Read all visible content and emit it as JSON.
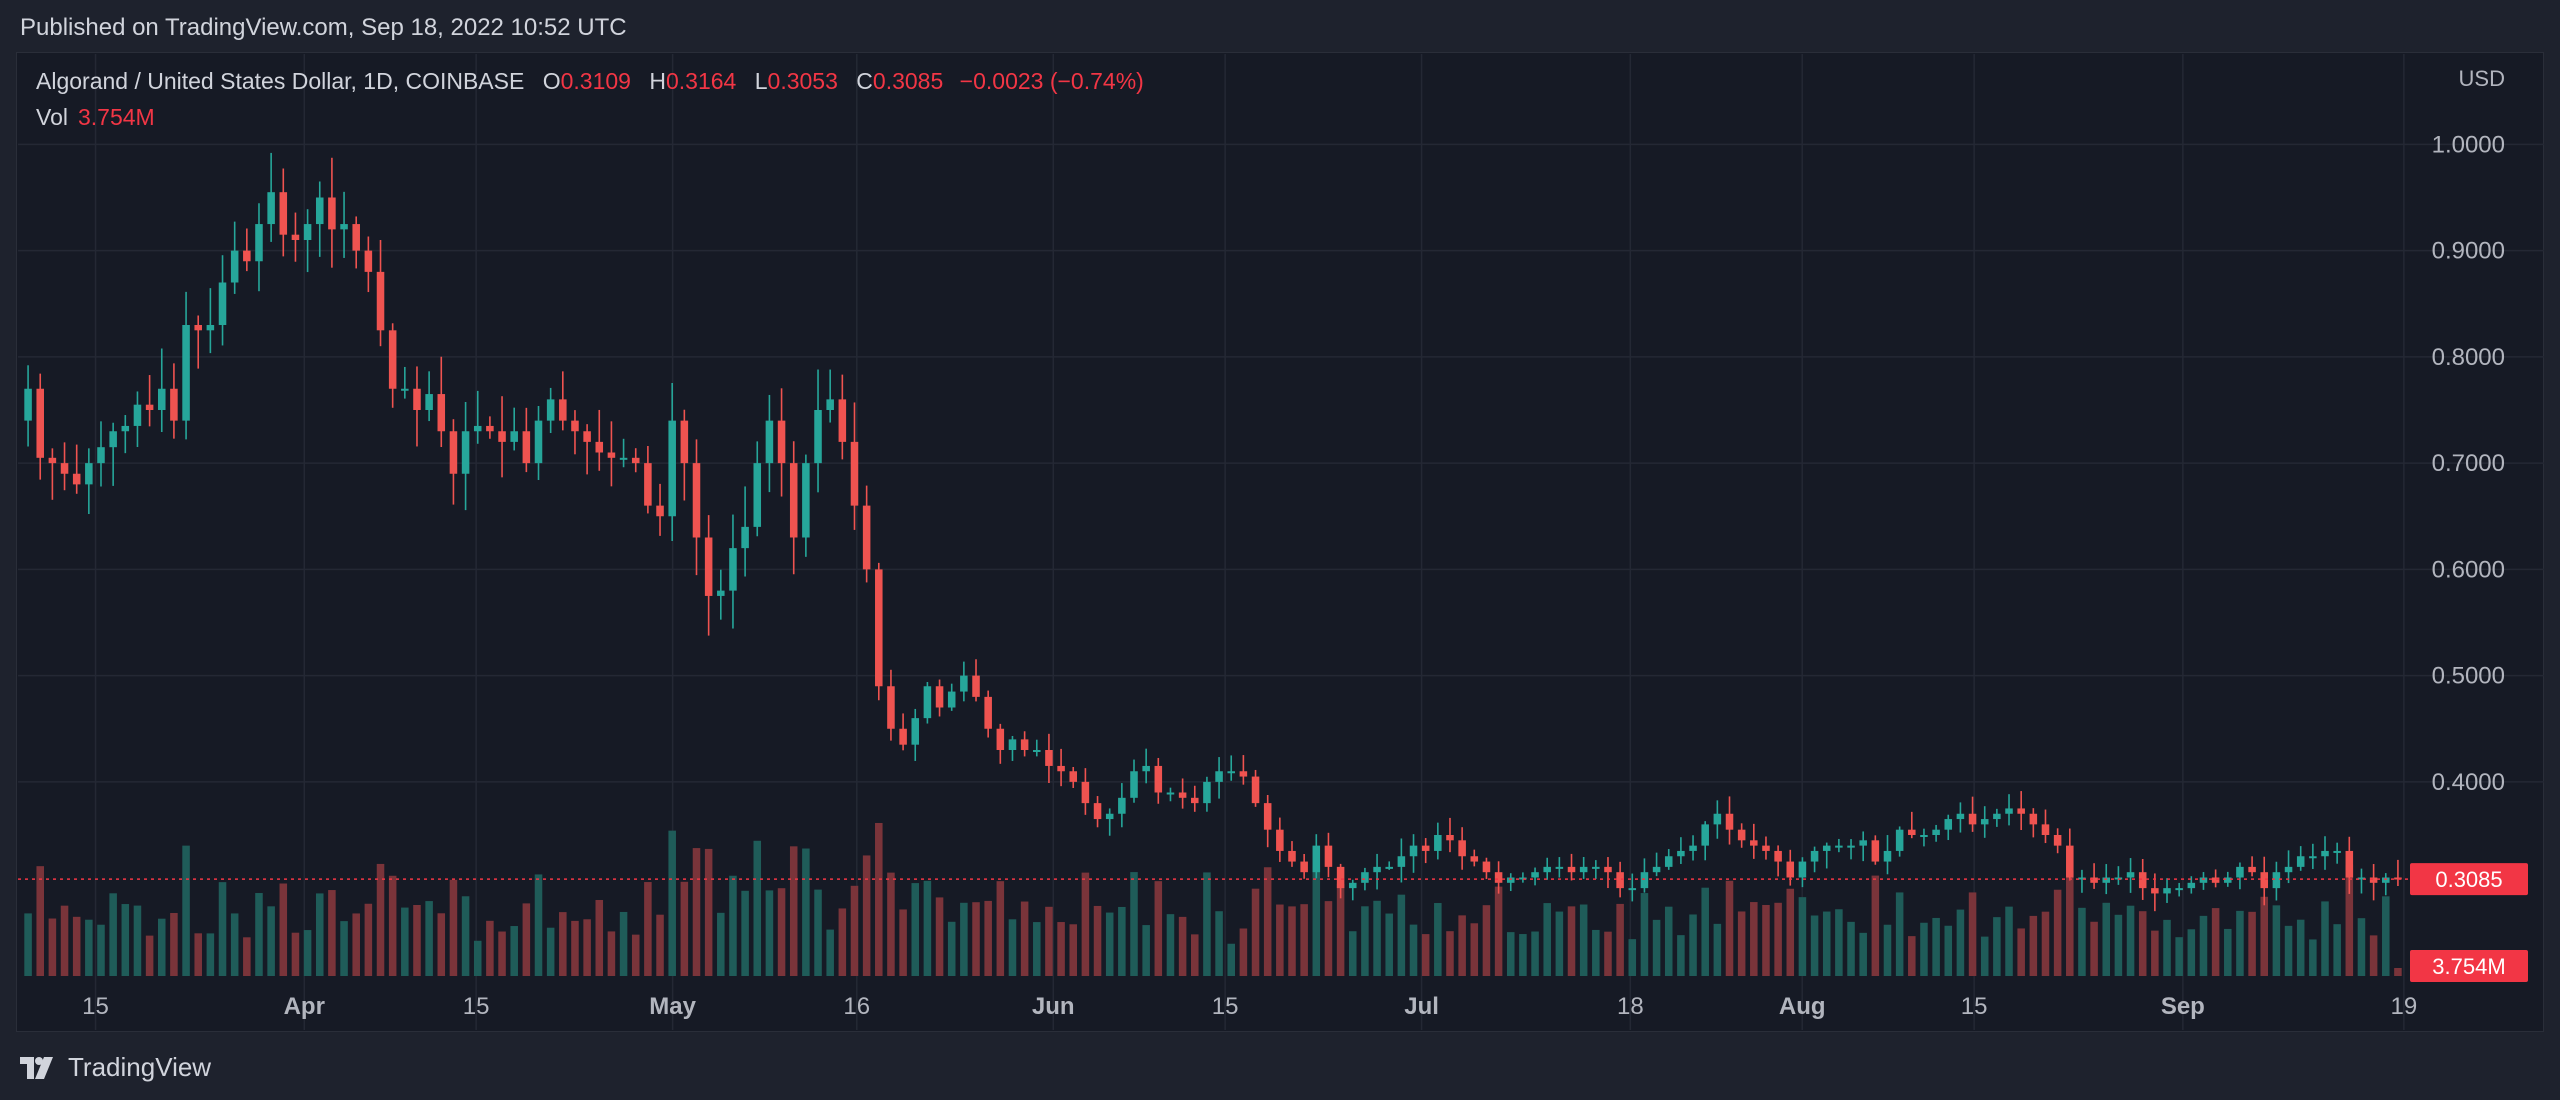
{
  "header": {
    "published": "Published on TradingView.com, Sep 18, 2022 10:52 UTC"
  },
  "legend": {
    "symbol": "Algorand / United States Dollar, 1D, COINBASE",
    "o_label": "O",
    "o_value": "0.3109",
    "h_label": "H",
    "h_value": "0.3164",
    "l_label": "L",
    "l_value": "0.3053",
    "c_label": "C",
    "c_value": "0.3085",
    "change": "−0.0023 (−0.74%)",
    "vol_label": "Vol",
    "vol_value": "3.754M"
  },
  "footer": {
    "brand": "TradingView"
  },
  "colors": {
    "up": "#26a69a",
    "down": "#ef5350",
    "up_volume": "#1f5c59",
    "down_volume": "#7a343a",
    "background": "#161a25",
    "grid": "#242834",
    "text": "#b2b5be",
    "price_label": "#f23645"
  },
  "chart_data": {
    "type": "candlestick",
    "currency_label": "USD",
    "y_ticks": [
      "1.0000",
      "0.9000",
      "0.8000",
      "0.7000",
      "0.6000",
      "0.5000",
      "0.4000"
    ],
    "ylim": [
      0.27,
      1.07
    ],
    "x_ticks": [
      "15",
      "Apr",
      "15",
      "May",
      "16",
      "Jun",
      "15",
      "Jul",
      "18",
      "Aug",
      "15",
      "Sep",
      "19"
    ],
    "last_price": "0.3085",
    "last_volume": "3.754M",
    "x_range": [
      "2022-03-10",
      "2022-09-19"
    ],
    "series": [
      {
        "name": "price",
        "closes": [
          0.77,
          0.705,
          0.7,
          0.69,
          0.68,
          0.7,
          0.715,
          0.73,
          0.735,
          0.755,
          0.75,
          0.77,
          0.74,
          0.83,
          0.825,
          0.83,
          0.87,
          0.9,
          0.89,
          0.925,
          0.955,
          0.915,
          0.91,
          0.925,
          0.95,
          0.92,
          0.925,
          0.9,
          0.88,
          0.825,
          0.77,
          0.77,
          0.75,
          0.765,
          0.73,
          0.69,
          0.73,
          0.735,
          0.73,
          0.72,
          0.73,
          0.7,
          0.74,
          0.76,
          0.74,
          0.73,
          0.72,
          0.71,
          0.705,
          0.705,
          0.7,
          0.66,
          0.65,
          0.74,
          0.7,
          0.63,
          0.575,
          0.58,
          0.62,
          0.64,
          0.7,
          0.74,
          0.7,
          0.63,
          0.7,
          0.75,
          0.76,
          0.72,
          0.66,
          0.6,
          0.49,
          0.45,
          0.435,
          0.46,
          0.49,
          0.47,
          0.485,
          0.5,
          0.48,
          0.45,
          0.43,
          0.44,
          0.43,
          0.43,
          0.415,
          0.41,
          0.4,
          0.38,
          0.365,
          0.37,
          0.385,
          0.41,
          0.415,
          0.39,
          0.39,
          0.385,
          0.38,
          0.4,
          0.41,
          0.41,
          0.405,
          0.38,
          0.355,
          0.335,
          0.325,
          0.315,
          0.34,
          0.32,
          0.3,
          0.305,
          0.315,
          0.32,
          0.32,
          0.33,
          0.34,
          0.335,
          0.35,
          0.345,
          0.33,
          0.325,
          0.315,
          0.305,
          0.31,
          0.31,
          0.315,
          0.32,
          0.32,
          0.315,
          0.32,
          0.32,
          0.315,
          0.3,
          0.3,
          0.315,
          0.32,
          0.33,
          0.335,
          0.34,
          0.36,
          0.37,
          0.355,
          0.345,
          0.34,
          0.335,
          0.325,
          0.31,
          0.325,
          0.335,
          0.34,
          0.34,
          0.34,
          0.345,
          0.325,
          0.335,
          0.355,
          0.35,
          0.35,
          0.355,
          0.365,
          0.37,
          0.36,
          0.365,
          0.37,
          0.375,
          0.37,
          0.36,
          0.35,
          0.34,
          0.31,
          0.31,
          0.305,
          0.31,
          0.31,
          0.315,
          0.3,
          0.295,
          0.3,
          0.3,
          0.305,
          0.31,
          0.305,
          0.31,
          0.32,
          0.315,
          0.3,
          0.315,
          0.32,
          0.33,
          0.33,
          0.335,
          0.335,
          0.31,
          0.31,
          0.305,
          0.31,
          0.3085
        ]
      }
    ]
  }
}
